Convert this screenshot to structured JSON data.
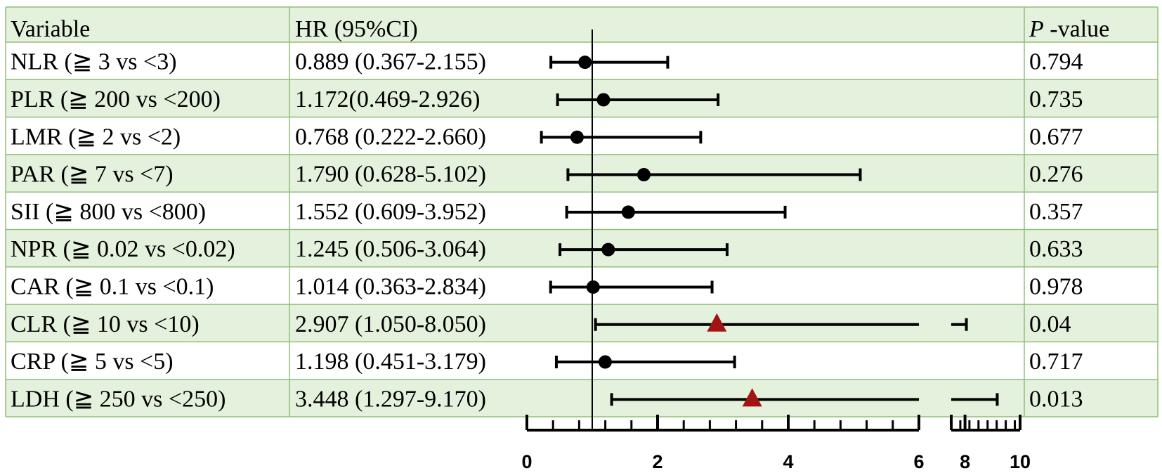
{
  "colors": {
    "shaded_row": "#e4f1dc",
    "grid_line": "#8fc07a",
    "marker_default": "#000000",
    "marker_significant": "#a01414"
  },
  "table": {
    "headers": {
      "variable": "Variable",
      "hr": "HR (95%CI)",
      "p_italic": "P",
      "p_suffix": " -value"
    }
  },
  "chart_data": {
    "type": "forest",
    "title": "",
    "xlabel": "",
    "reference_line": 1,
    "x_axis": {
      "segments": [
        {
          "range": [
            0,
            6
          ],
          "major_ticks": [
            0,
            2,
            4,
            6
          ],
          "minor_step": 0.4
        },
        {
          "range": [
            7.5,
            10
          ],
          "major_ticks": [
            8,
            10
          ],
          "minor_step": 0.33
        }
      ],
      "tick_labels": [
        "0",
        "2",
        "4",
        "6",
        "8",
        "10"
      ]
    },
    "rows": [
      {
        "variable": "NLR (≧ 3 vs <3)",
        "hr_text": "0.889 (0.367-2.155)",
        "p": "0.794",
        "hr": 0.889,
        "lo": 0.367,
        "hi": 2.155,
        "marker": "circle",
        "shaded": false
      },
      {
        "variable": "PLR (≧ 200 vs <200)",
        "hr_text": "1.172(0.469-2.926)",
        "p": "0.735",
        "hr": 1.172,
        "lo": 0.469,
        "hi": 2.926,
        "marker": "circle",
        "shaded": true
      },
      {
        "variable": "LMR (≧ 2 vs <2)",
        "hr_text": "0.768 (0.222-2.660)",
        "p": "0.677",
        "hr": 0.768,
        "lo": 0.222,
        "hi": 2.66,
        "marker": "circle",
        "shaded": false
      },
      {
        "variable": "PAR (≧ 7 vs <7)",
        "hr_text": "1.790 (0.628-5.102)",
        "p": "0.276",
        "hr": 1.79,
        "lo": 0.628,
        "hi": 5.102,
        "marker": "circle",
        "shaded": true
      },
      {
        "variable": "SII (≧ 800 vs <800)",
        "hr_text": "1.552 (0.609-3.952)",
        "p": "0.357",
        "hr": 1.552,
        "lo": 0.609,
        "hi": 3.952,
        "marker": "circle",
        "shaded": false
      },
      {
        "variable": "NPR (≧ 0.02 vs <0.02)",
        "hr_text": "1.245 (0.506-3.064)",
        "p": "0.633",
        "hr": 1.245,
        "lo": 0.506,
        "hi": 3.064,
        "marker": "circle",
        "shaded": true
      },
      {
        "variable": "CAR (≧ 0.1 vs <0.1)",
        "hr_text": "1.014 (0.363-2.834)",
        "p": "0.978",
        "hr": 1.014,
        "lo": 0.363,
        "hi": 2.834,
        "marker": "circle",
        "shaded": false
      },
      {
        "variable": "CLR (≧ 10 vs <10)",
        "hr_text": "2.907 (1.050-8.050)",
        "p": "0.04",
        "hr": 2.907,
        "lo": 1.05,
        "hi": 8.05,
        "marker": "triangle",
        "shaded": true
      },
      {
        "variable": "CRP (≧ 5 vs <5)",
        "hr_text": "1.198 (0.451-3.179)",
        "p": "0.717",
        "hr": 1.198,
        "lo": 0.451,
        "hi": 3.179,
        "marker": "circle",
        "shaded": false
      },
      {
        "variable": "LDH (≧ 250 vs <250)",
        "hr_text": "3.448 (1.297-9.170)",
        "p": "0.013",
        "hr": 3.448,
        "lo": 1.297,
        "hi": 9.17,
        "marker": "triangle",
        "shaded": true
      }
    ]
  }
}
